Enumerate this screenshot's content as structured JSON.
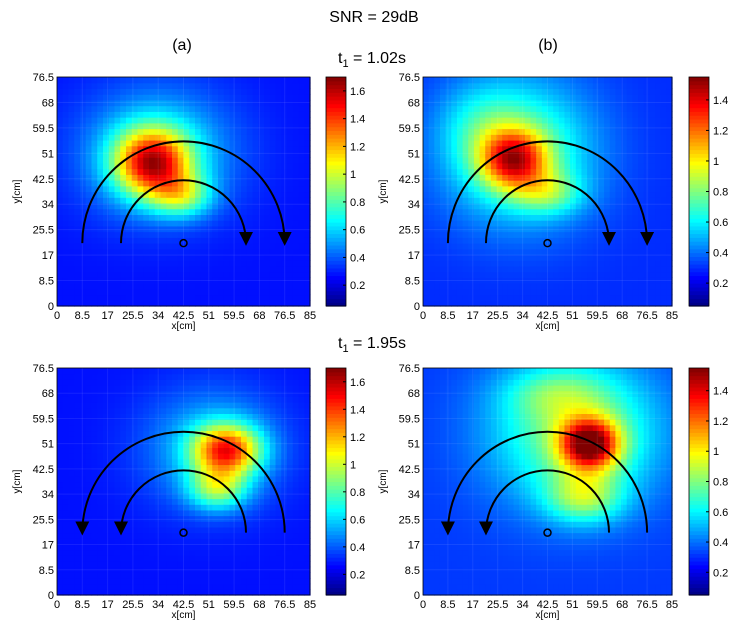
{
  "figure": {
    "title": "SNR = 29dB",
    "label_a": "(a)",
    "label_b": "(b)",
    "row1_prefix": "t",
    "row1_sub": "1",
    "row1_time": " = 1.02s",
    "row2_prefix": "t",
    "row2_sub": "1",
    "row2_time": " = 1.95s"
  },
  "colormap": "jet",
  "colors": {
    "background": "#00008f",
    "arrow": "#000000"
  },
  "chart_data": [
    {
      "type": "heatmap",
      "panel": "a",
      "row": 1,
      "xlabel": "x[cm]",
      "ylabel": "y[cm]",
      "xlim": [
        0,
        85
      ],
      "ylim": [
        0,
        76.5
      ],
      "xticks": [
        "0",
        "8.5",
        "17",
        "25.5",
        "34",
        "42.5",
        "51",
        "59.5",
        "68",
        "76.5",
        "85"
      ],
      "yticks": [
        "0",
        "8.5",
        "17",
        "25.5",
        "34",
        "42.5",
        "51",
        "59.5",
        "68",
        "76.5"
      ],
      "colorbar_ticks": [
        "0.2",
        "0.4",
        "0.6",
        "0.8",
        "1",
        "1.2",
        "1.4",
        "1.6"
      ],
      "colorbar_range": [
        0.05,
        1.7
      ],
      "base": 0.28,
      "blobs": [
        {
          "x": 32,
          "y": 48,
          "sx": 9,
          "sy": 8,
          "a": 1.05
        },
        {
          "x": 42,
          "y": 37,
          "sx": 7,
          "sy": 5,
          "a": 0.45
        },
        {
          "x": 34,
          "y": 52,
          "sx": 18,
          "sy": 15,
          "a": 0.35
        }
      ],
      "marker": {
        "x": 42.5,
        "y": 21
      },
      "arcs": [
        {
          "cx": 42.5,
          "cy": 21,
          "r": 34,
          "direction": "clockwise"
        },
        {
          "cx": 42.5,
          "cy": 21,
          "r": 21,
          "direction": "clockwise"
        }
      ]
    },
    {
      "type": "heatmap",
      "panel": "b",
      "row": 1,
      "xlabel": "x[cm]",
      "ylabel": "y[cm]",
      "xlim": [
        0,
        85
      ],
      "ylim": [
        0,
        76.5
      ],
      "xticks": [
        "0",
        "8.5",
        "17",
        "25.5",
        "34",
        "42.5",
        "51",
        "59.5",
        "68",
        "76.5",
        "85"
      ],
      "yticks": [
        "0",
        "8.5",
        "17",
        "25.5",
        "34",
        "42.5",
        "51",
        "59.5",
        "68",
        "76.5"
      ],
      "colorbar_ticks": [
        "0.2",
        "0.4",
        "0.6",
        "0.8",
        "1",
        "1.2",
        "1.4"
      ],
      "colorbar_range": [
        0.05,
        1.55
      ],
      "base": 0.3,
      "blobs": [
        {
          "x": 31,
          "y": 49,
          "sx": 8,
          "sy": 7,
          "a": 0.75
        },
        {
          "x": 33,
          "y": 52,
          "sx": 18,
          "sy": 17,
          "a": 0.45
        },
        {
          "x": 43,
          "y": 38,
          "sx": 8,
          "sy": 5,
          "a": 0.3
        },
        {
          "x": 20,
          "y": 60,
          "sx": 10,
          "sy": 10,
          "a": 0.15
        }
      ],
      "marker": {
        "x": 42.5,
        "y": 21
      },
      "arcs": [
        {
          "cx": 42.5,
          "cy": 21,
          "r": 34,
          "direction": "clockwise"
        },
        {
          "cx": 42.5,
          "cy": 21,
          "r": 21,
          "direction": "clockwise"
        }
      ]
    },
    {
      "type": "heatmap",
      "panel": "a",
      "row": 2,
      "xlabel": "x[cm]",
      "ylabel": "y[cm]",
      "xlim": [
        0,
        85
      ],
      "ylim": [
        0,
        76.5
      ],
      "xticks": [
        "0",
        "8.5",
        "17",
        "25.5",
        "34",
        "42.5",
        "51",
        "59.5",
        "68",
        "76.5",
        "85"
      ],
      "yticks": [
        "0",
        "8.5",
        "17",
        "25.5",
        "34",
        "42.5",
        "51",
        "59.5",
        "68",
        "76.5"
      ],
      "colorbar_ticks": [
        "0.2",
        "0.4",
        "0.6",
        "0.8",
        "1",
        "1.2",
        "1.4",
        "1.6"
      ],
      "colorbar_range": [
        0.05,
        1.7
      ],
      "base": 0.28,
      "blobs": [
        {
          "x": 57,
          "y": 49,
          "sx": 8,
          "sy": 6,
          "a": 0.95
        },
        {
          "x": 54,
          "y": 36,
          "sx": 7,
          "sy": 5,
          "a": 0.5
        },
        {
          "x": 52,
          "y": 50,
          "sx": 16,
          "sy": 14,
          "a": 0.3
        }
      ],
      "marker": {
        "x": 42.5,
        "y": 21
      },
      "arcs": [
        {
          "cx": 42.5,
          "cy": 21,
          "r": 34,
          "direction": "counterclockwise"
        },
        {
          "cx": 42.5,
          "cy": 21,
          "r": 21,
          "direction": "counterclockwise"
        }
      ]
    },
    {
      "type": "heatmap",
      "panel": "b",
      "row": 2,
      "xlabel": "x[cm]",
      "ylabel": "y[cm]",
      "xlim": [
        0,
        85
      ],
      "ylim": [
        0,
        76.5
      ],
      "xticks": [
        "0",
        "8.5",
        "17",
        "25.5",
        "34",
        "42.5",
        "51",
        "59.5",
        "68",
        "76.5",
        "85"
      ],
      "yticks": [
        "0",
        "8.5",
        "17",
        "25.5",
        "34",
        "42.5",
        "51",
        "59.5",
        "68",
        "76.5"
      ],
      "colorbar_ticks": [
        "0.2",
        "0.4",
        "0.6",
        "0.8",
        "1",
        "1.2",
        "1.4"
      ],
      "colorbar_range": [
        0.05,
        1.55
      ],
      "base": 0.32,
      "blobs": [
        {
          "x": 57,
          "y": 51,
          "sx": 7,
          "sy": 6,
          "a": 0.95
        },
        {
          "x": 52,
          "y": 55,
          "sx": 20,
          "sy": 17,
          "a": 0.5
        },
        {
          "x": 55,
          "y": 33,
          "sx": 9,
          "sy": 6,
          "a": 0.4
        },
        {
          "x": 45,
          "y": 68,
          "sx": 12,
          "sy": 6,
          "a": 0.2
        }
      ],
      "marker": {
        "x": 42.5,
        "y": 21
      },
      "arcs": [
        {
          "cx": 42.5,
          "cy": 21,
          "r": 34,
          "direction": "counterclockwise"
        },
        {
          "cx": 42.5,
          "cy": 21,
          "r": 21,
          "direction": "counterclockwise"
        }
      ]
    }
  ]
}
